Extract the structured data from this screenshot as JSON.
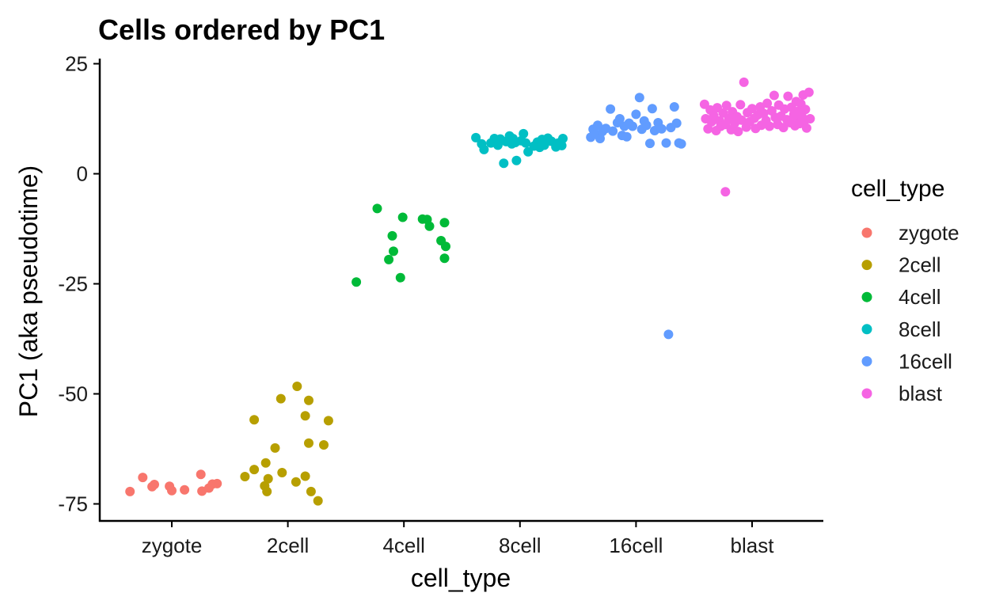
{
  "chart_data": {
    "type": "scatter",
    "title": "Cells ordered by PC1",
    "xlabel": "cell_type",
    "ylabel": "PC1 (aka pseudotime)",
    "categories": [
      "zygote",
      "2cell",
      "4cell",
      "8cell",
      "16cell",
      "blast"
    ],
    "y_ticks": [
      25,
      0,
      -25,
      -50,
      -75
    ],
    "ylim": [
      -78,
      26
    ],
    "grid": false,
    "legend": {
      "title": "cell_type",
      "position": "right",
      "entries": [
        "zygote",
        "2cell",
        "4cell",
        "8cell",
        "16cell",
        "blast"
      ]
    },
    "colors": {
      "zygote": "#F8766D",
      "2cell": "#B79F00",
      "4cell": "#00BA38",
      "8cell": "#00BFC4",
      "16cell": "#619CFF",
      "blast": "#F564E3"
    },
    "series": [
      {
        "name": "zygote",
        "points": [
          [
            -0.36,
            -72.2
          ],
          [
            -0.25,
            -69.0
          ],
          [
            -0.17,
            -71.1
          ],
          [
            -0.15,
            -70.6
          ],
          [
            -0.02,
            -71.0
          ],
          [
            0.0,
            -72.0
          ],
          [
            0.11,
            -71.8
          ],
          [
            0.25,
            -68.3
          ],
          [
            0.26,
            -72.1
          ],
          [
            0.32,
            -71.4
          ],
          [
            0.35,
            -70.5
          ],
          [
            0.39,
            -70.4
          ]
        ]
      },
      {
        "name": "2cell",
        "points": [
          [
            -0.37,
            -68.8
          ],
          [
            -0.29,
            -55.9
          ],
          [
            -0.29,
            -67.2
          ],
          [
            -0.2,
            -70.9
          ],
          [
            -0.19,
            -65.7
          ],
          [
            -0.18,
            -72.2
          ],
          [
            -0.17,
            -69.3
          ],
          [
            -0.11,
            -62.3
          ],
          [
            -0.06,
            -51.1
          ],
          [
            -0.05,
            -67.9
          ],
          [
            0.07,
            -70.0
          ],
          [
            0.08,
            -48.3
          ],
          [
            0.15,
            -55.0
          ],
          [
            0.15,
            -68.7
          ],
          [
            0.18,
            -51.5
          ],
          [
            0.18,
            -61.2
          ],
          [
            0.2,
            -72.2
          ],
          [
            0.26,
            -74.3
          ],
          [
            0.31,
            -61.6
          ],
          [
            0.35,
            -56.1
          ]
        ]
      },
      {
        "name": "4cell",
        "points": [
          [
            -0.41,
            -24.6
          ],
          [
            -0.23,
            -7.9
          ],
          [
            -0.13,
            -19.5
          ],
          [
            -0.1,
            -14.1
          ],
          [
            -0.09,
            -17.6
          ],
          [
            -0.03,
            -23.6
          ],
          [
            -0.01,
            -9.9
          ],
          [
            0.16,
            -10.3
          ],
          [
            0.2,
            -10.4
          ],
          [
            0.22,
            -11.9
          ],
          [
            0.32,
            -15.2
          ],
          [
            0.35,
            -19.2
          ],
          [
            0.35,
            -11.1
          ],
          [
            0.36,
            -16.5
          ]
        ]
      },
      {
        "name": "8cell",
        "points": [
          [
            -0.38,
            8.2
          ],
          [
            -0.33,
            6.8
          ],
          [
            -0.31,
            5.5
          ],
          [
            -0.25,
            7.0
          ],
          [
            -0.22,
            8.0
          ],
          [
            -0.19,
            6.5
          ],
          [
            -0.17,
            7.9
          ],
          [
            -0.14,
            2.4
          ],
          [
            -0.12,
            7.3
          ],
          [
            -0.09,
            8.6
          ],
          [
            -0.07,
            6.8
          ],
          [
            -0.06,
            8.0
          ],
          [
            -0.04,
            7.1
          ],
          [
            -0.03,
            3.0
          ],
          [
            0.01,
            7.5
          ],
          [
            0.03,
            9.1
          ],
          [
            0.05,
            7.0
          ],
          [
            0.07,
            5.0
          ],
          [
            0.12,
            6.3
          ],
          [
            0.15,
            7.2
          ],
          [
            0.17,
            6.0
          ],
          [
            0.19,
            7.8
          ],
          [
            0.21,
            6.5
          ],
          [
            0.24,
            8.1
          ],
          [
            0.27,
            7.4
          ],
          [
            0.31,
            6.1
          ],
          [
            0.33,
            7.0
          ],
          [
            0.36,
            6.4
          ],
          [
            0.37,
            8.0
          ]
        ]
      },
      {
        "name": "16cell",
        "points": [
          [
            -0.39,
            8.3
          ],
          [
            -0.37,
            10.1
          ],
          [
            -0.35,
            9.0
          ],
          [
            -0.33,
            11.0
          ],
          [
            -0.31,
            8.0
          ],
          [
            -0.29,
            9.6
          ],
          [
            -0.26,
            10.3
          ],
          [
            -0.22,
            14.7
          ],
          [
            -0.2,
            9.7
          ],
          [
            -0.16,
            11.6
          ],
          [
            -0.14,
            12.5
          ],
          [
            -0.12,
            8.7
          ],
          [
            -0.1,
            10.8
          ],
          [
            -0.08,
            8.4
          ],
          [
            -0.06,
            11.5
          ],
          [
            -0.03,
            10.8
          ],
          [
            0.0,
            13.5
          ],
          [
            0.03,
            17.3
          ],
          [
            0.05,
            10.1
          ],
          [
            0.07,
            12.0
          ],
          [
            0.09,
            11.0
          ],
          [
            0.12,
            6.9
          ],
          [
            0.14,
            14.8
          ],
          [
            0.16,
            9.8
          ],
          [
            0.19,
            11.6
          ],
          [
            0.22,
            10.2
          ],
          [
            0.26,
            7.0
          ],
          [
            0.28,
            -36.5
          ],
          [
            0.3,
            10.5
          ],
          [
            0.33,
            15.2
          ],
          [
            0.35,
            11.5
          ],
          [
            0.37,
            7.0
          ],
          [
            0.39,
            6.8
          ]
        ]
      },
      {
        "name": "blast",
        "points": [
          [
            -0.41,
            15.8
          ],
          [
            -0.4,
            12.5
          ],
          [
            -0.38,
            10.2
          ],
          [
            -0.36,
            14.5
          ],
          [
            -0.35,
            11.8
          ],
          [
            -0.33,
            13.2
          ],
          [
            -0.31,
            9.8
          ],
          [
            -0.3,
            15.0
          ],
          [
            -0.28,
            12.0
          ],
          [
            -0.27,
            10.8
          ],
          [
            -0.25,
            13.8
          ],
          [
            -0.23,
            11.2
          ],
          [
            -0.22,
            15.5
          ],
          [
            -0.23,
            -4.1
          ],
          [
            -0.2,
            12.6
          ],
          [
            -0.18,
            10.0
          ],
          [
            -0.17,
            14.1
          ],
          [
            -0.15,
            11.5
          ],
          [
            -0.13,
            13.0
          ],
          [
            -0.12,
            9.6
          ],
          [
            -0.1,
            15.7
          ],
          [
            -0.09,
            12.2
          ],
          [
            -0.07,
            20.8
          ],
          [
            -0.05,
            10.6
          ],
          [
            -0.04,
            13.9
          ],
          [
            -0.02,
            11.8
          ],
          [
            0.0,
            14.8
          ],
          [
            0.02,
            12.6
          ],
          [
            0.03,
            10.3
          ],
          [
            0.05,
            13.4
          ],
          [
            0.07,
            15.2
          ],
          [
            0.08,
            11.0
          ],
          [
            0.1,
            13.7
          ],
          [
            0.12,
            12.1
          ],
          [
            0.13,
            16.0
          ],
          [
            0.15,
            10.8
          ],
          [
            0.17,
            14.3
          ],
          [
            0.19,
            17.8
          ],
          [
            0.2,
            12.8
          ],
          [
            0.22,
            11.2
          ],
          [
            0.23,
            15.6
          ],
          [
            0.25,
            13.1
          ],
          [
            0.27,
            10.5
          ],
          [
            0.28,
            14.7
          ],
          [
            0.3,
            12.3
          ],
          [
            0.31,
            17.6
          ],
          [
            0.33,
            11.6
          ],
          [
            0.34,
            15.1
          ],
          [
            0.36,
            13.5
          ],
          [
            0.37,
            10.9
          ],
          [
            0.38,
            16.4
          ],
          [
            0.39,
            12.9
          ],
          [
            0.4,
            14.2
          ],
          [
            0.41,
            11.4
          ],
          [
            0.42,
            15.9
          ],
          [
            0.43,
            13.0
          ],
          [
            0.44,
            17.9
          ],
          [
            0.45,
            12.0
          ],
          [
            0.46,
            14.6
          ],
          [
            0.47,
            10.4
          ],
          [
            0.49,
            18.5
          ],
          [
            0.5,
            12.5
          ]
        ]
      }
    ]
  }
}
